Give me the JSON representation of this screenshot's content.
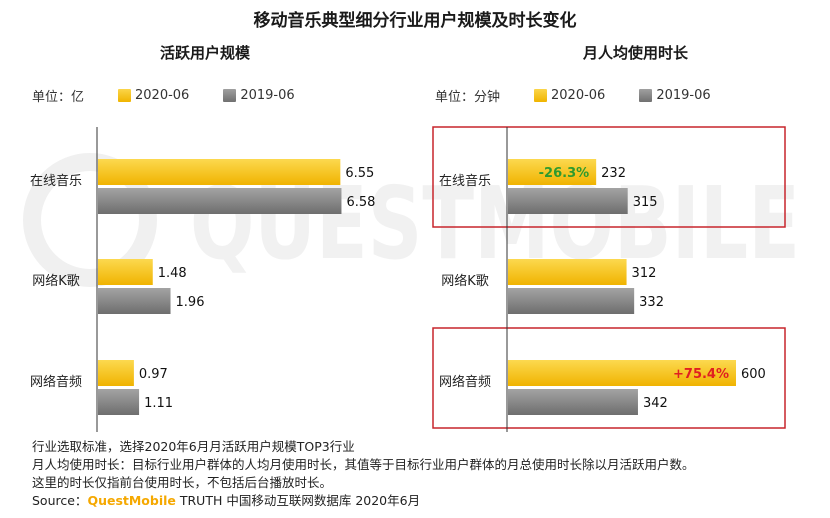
{
  "title": "移动音乐典型细分行业用户规模及时长变化",
  "watermark_text": "QUESTMOBILE",
  "colors": {
    "series_2020": "#f7c52d",
    "series_2019": "#8c8c8c",
    "highlight_box": "#c7252c",
    "pos_change": "#e02020",
    "neg_change": "#2e9a2e"
  },
  "chart_data": [
    {
      "type": "bar",
      "orientation": "horizontal",
      "title": "活跃用户规模",
      "unit_label": "单位：亿",
      "categories": [
        "在线音乐",
        "网络K歌",
        "网络音频"
      ],
      "series": [
        {
          "name": "2020-06",
          "values": [
            6.55,
            1.48,
            0.97
          ]
        },
        {
          "name": "2019-06",
          "values": [
            6.58,
            1.96,
            1.11
          ]
        }
      ],
      "value_labels": {
        "2020-06": [
          "6.55",
          "1.48",
          "0.97"
        ],
        "2019-06": [
          "6.58",
          "1.96",
          "1.11"
        ]
      },
      "xlim": [
        0,
        7.5
      ]
    },
    {
      "type": "bar",
      "orientation": "horizontal",
      "title": "月人均使用时长",
      "unit_label": "单位：分钟",
      "categories": [
        "在线音乐",
        "网络K歌",
        "网络音频"
      ],
      "series": [
        {
          "name": "2020-06",
          "values": [
            232,
            312,
            600
          ]
        },
        {
          "name": "2019-06",
          "values": [
            315,
            332,
            342
          ]
        }
      ],
      "value_labels": {
        "2020-06": [
          "232",
          "312",
          "600"
        ],
        "2019-06": [
          "315",
          "332",
          "342"
        ]
      },
      "annotations": [
        {
          "category": "在线音乐",
          "text": "-26.3%",
          "kind": "neg"
        },
        {
          "category": "网络音频",
          "text": "+75.4%",
          "kind": "pos"
        }
      ],
      "highlighted_categories": [
        "在线音乐",
        "网络音频"
      ],
      "xlim": [
        0,
        690
      ]
    }
  ],
  "footnotes": {
    "line1": "行业选取标准，选择2020年6月月活跃用户规模TOP3行业",
    "line2": "月人均使用时长：目标行业用户群体的人均月使用时长，其值等于目标行业用户群体的月总使用时长除以月活跃用户数。",
    "line3": "这里的时长仅指前台使用时长，不包括后台播放时长。",
    "source_prefix": "Source：",
    "source_brand": "QuestMobile",
    "source_rest": " TRUTH 中国移动互联网数据库 2020年6月"
  }
}
